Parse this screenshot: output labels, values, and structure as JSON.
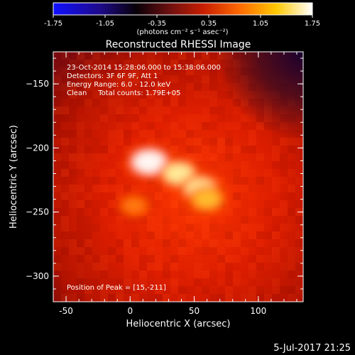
{
  "chart_data": {
    "type": "heatmap",
    "title": "Reconstructed RHESSI Image",
    "xlabel": "Heliocentric X (arcsec)",
    "ylabel": "Heliocentric Y (arcsec)",
    "xlim": [
      -60,
      135
    ],
    "ylim": [
      -320,
      -125
    ],
    "xticks": [
      -50,
      0,
      50,
      100
    ],
    "yticks": [
      -150,
      -200,
      -250,
      -300
    ],
    "colorbar": {
      "min": -1.75,
      "max": 1.75,
      "ticks": [
        -1.75,
        -1.05,
        -0.35,
        0.35,
        1.05,
        1.75
      ],
      "tick_labels": [
        "-1.75",
        "-1.05",
        "-0.35",
        "0.35",
        "1.05",
        "1.75"
      ],
      "label": "(photons cm⁻² s⁻¹ asec⁻²)",
      "colormap": "blue-black-red-yellow-white"
    },
    "annotations": {
      "time_range": "23-Oct-2014 15:28:06.000 to 15:38:06.000",
      "detectors": "Detectors: 3F 6F 9F, Att 1",
      "energy": "Energy Range: 6.0 - 12.0 keV",
      "clean": "Clean     Total counts: 1.79E+05",
      "peak": "Position of Peak = [15,-211]"
    },
    "sources": [
      {
        "x": 15,
        "y": -211,
        "intensity": 1.75
      },
      {
        "x": 38,
        "y": -220,
        "intensity": 1.5
      },
      {
        "x": 55,
        "y": -232,
        "intensity": 1.55
      },
      {
        "x": 60,
        "y": -240,
        "intensity": 1.3
      },
      {
        "x": 3,
        "y": -245,
        "intensity": 0.85
      }
    ],
    "footer_date": "5-Jul-2017 21:25"
  }
}
